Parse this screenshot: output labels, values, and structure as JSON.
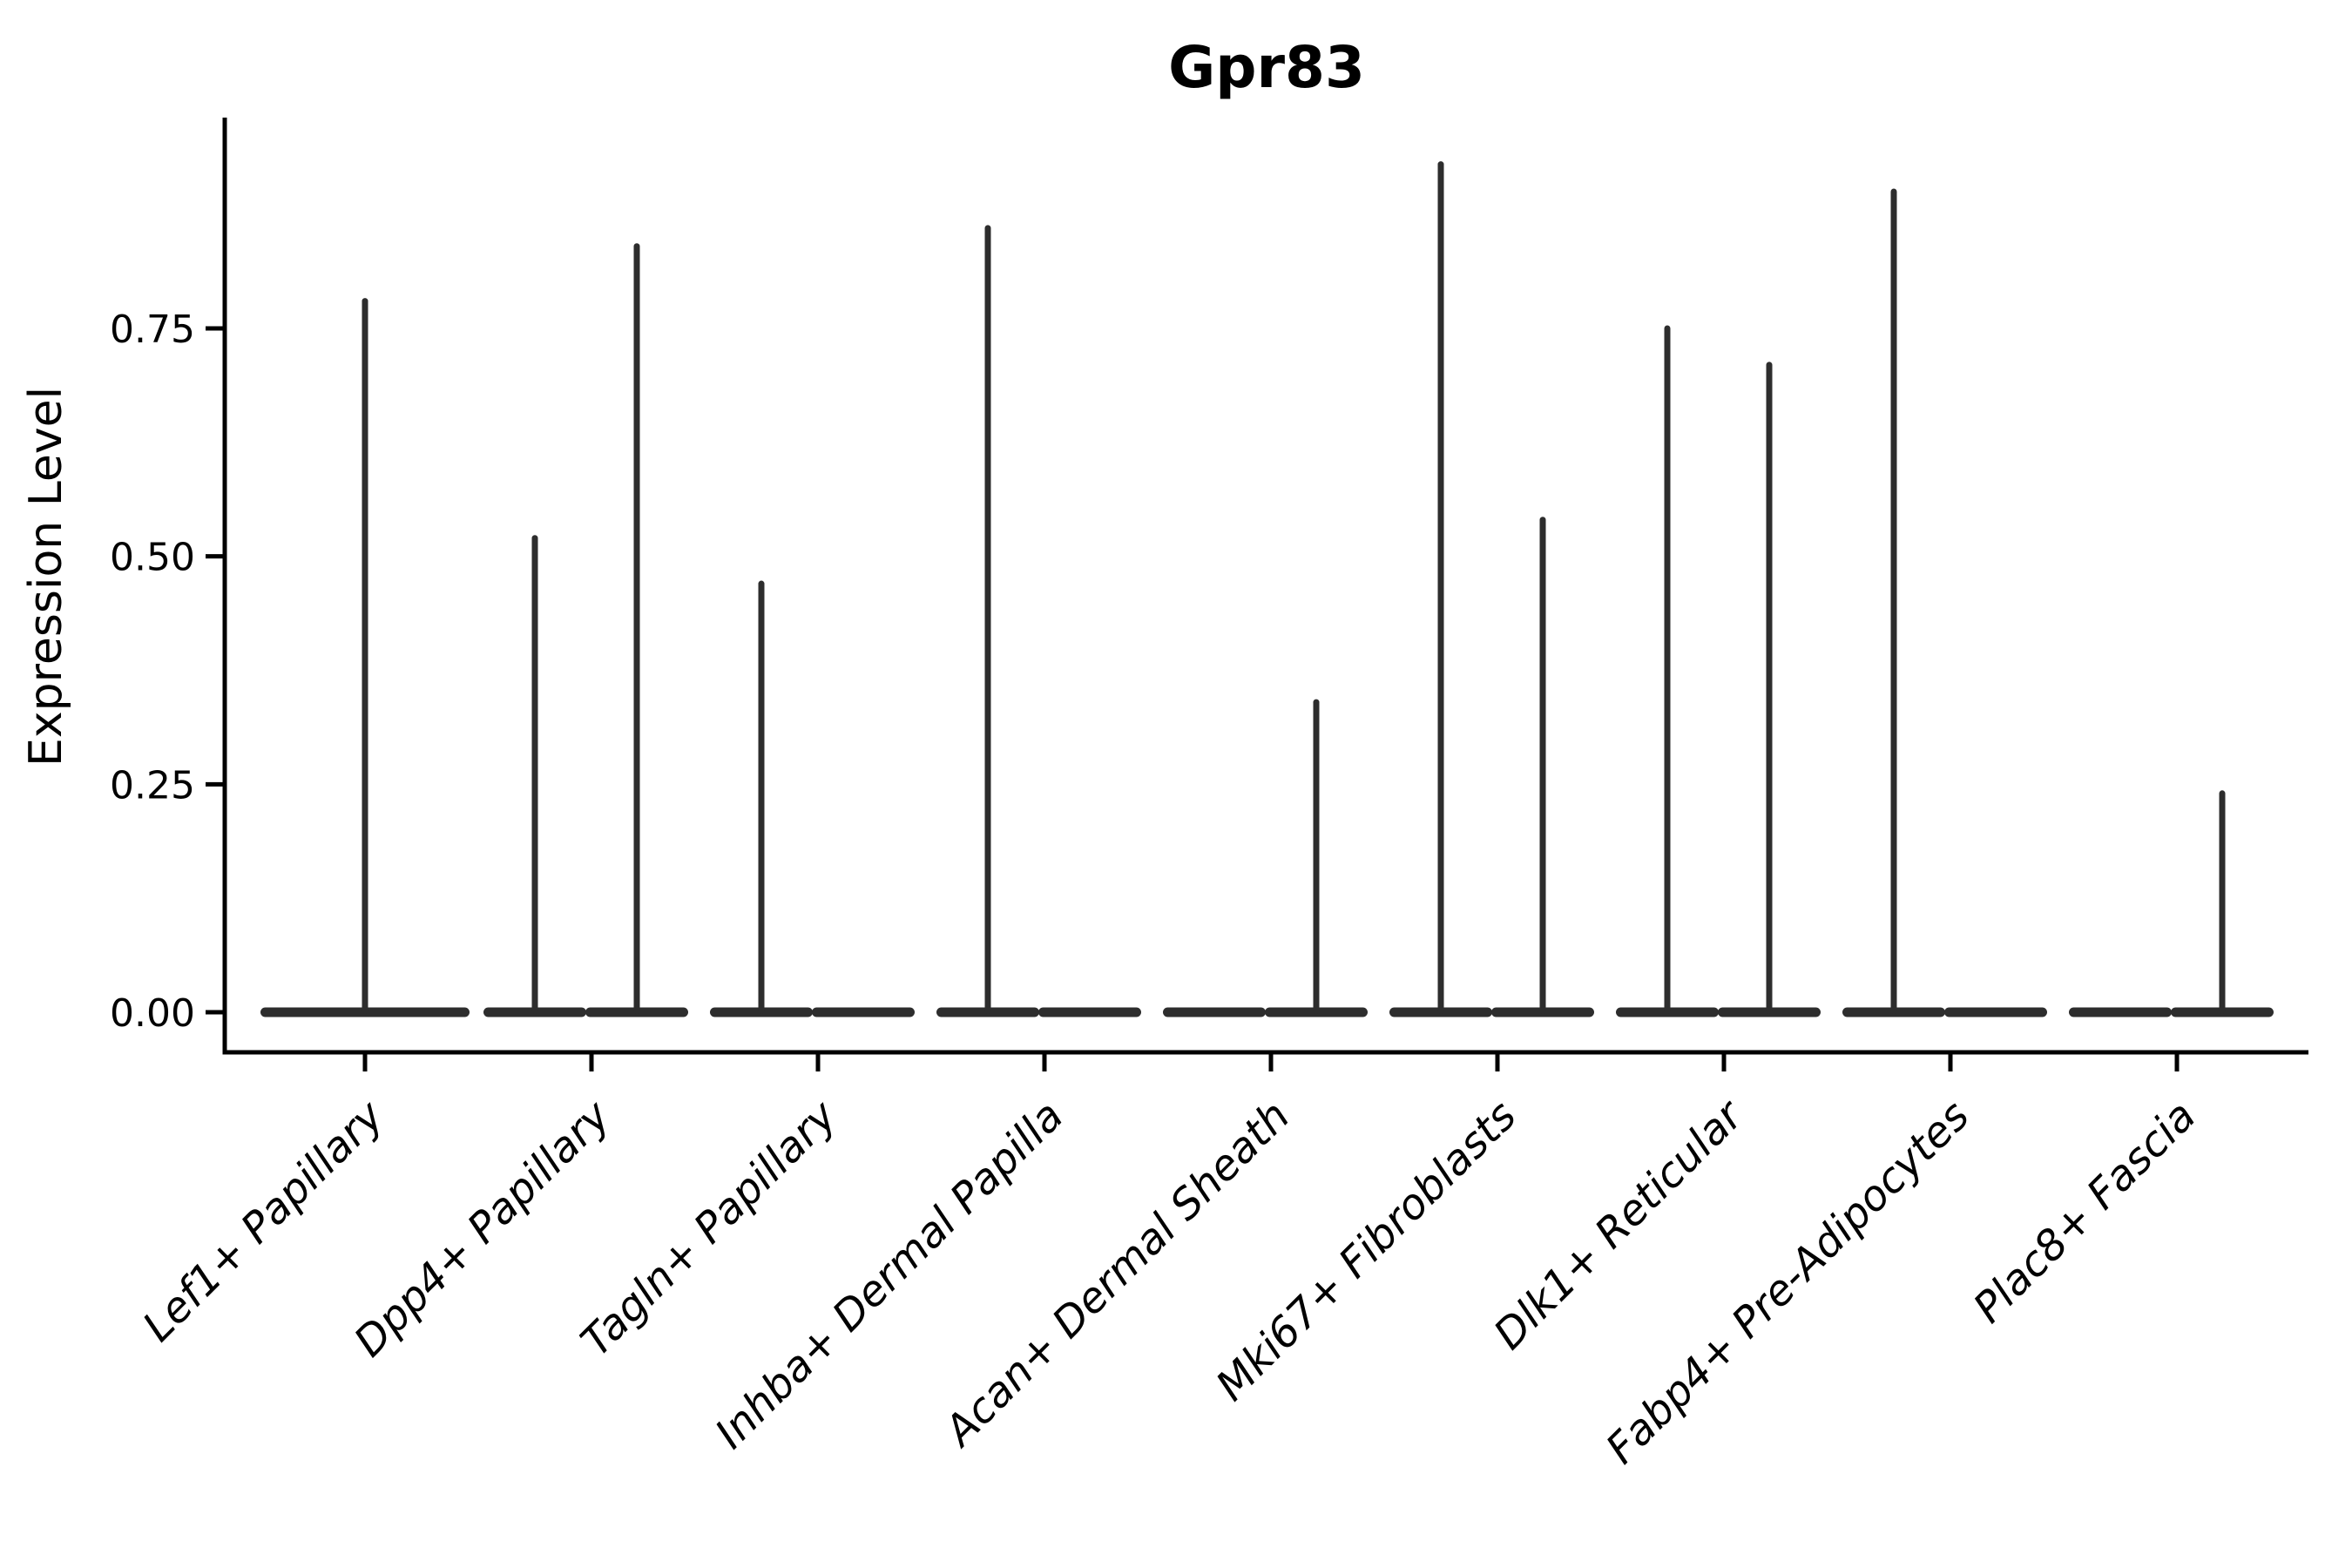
{
  "figure": {
    "background": "#ffffff"
  },
  "chart_data": {
    "type": "violin",
    "title": "Gpr83",
    "xlabel": "",
    "ylabel": "Expression Level",
    "yticks": [
      "0.00",
      "0.25",
      "0.50",
      "0.75"
    ],
    "ytick_values": [
      0.0,
      0.25,
      0.5,
      0.75
    ],
    "ylim": [
      -0.04,
      0.99
    ],
    "grid": false,
    "legend": "none",
    "categories": [
      "Lef1+ Papillary",
      "Dpp4+ Papillary",
      "Tagln+ Papillary",
      "Inhba+ Dermal Papilla",
      "Acan+ Dermal Sheath",
      "Mki67+ Fibroblasts",
      "Dlk1+ Reticular",
      "Fabp4+ Pre-Adipocytes",
      "Plac8+ Fascia"
    ],
    "violin_description": "Each category shows violin(s) collapsed at 0 expression (wide flat base) with a thin spike up to the maximum expression value; categories with two sub-violins have them dodged left/right of the tick.",
    "violins": [
      {
        "category": "Lef1+ Papillary",
        "sub_violins": [
          {
            "position": "center",
            "max_expression": 0.78
          }
        ]
      },
      {
        "category": "Dpp4+ Papillary",
        "sub_violins": [
          {
            "position": "left",
            "max_expression": 0.52
          },
          {
            "position": "right",
            "max_expression": 0.84
          }
        ]
      },
      {
        "category": "Tagln+ Papillary",
        "sub_violins": [
          {
            "position": "left",
            "max_expression": 0.47
          },
          {
            "position": "right",
            "max_expression": 0.0
          }
        ]
      },
      {
        "category": "Inhba+ Dermal Papilla",
        "sub_violins": [
          {
            "position": "left",
            "max_expression": 0.86
          },
          {
            "position": "right",
            "max_expression": 0.0
          }
        ]
      },
      {
        "category": "Acan+ Dermal Sheath",
        "sub_violins": [
          {
            "position": "left",
            "max_expression": 0.0
          },
          {
            "position": "right",
            "max_expression": 0.34
          }
        ]
      },
      {
        "category": "Mki67+ Fibroblasts",
        "sub_violins": [
          {
            "position": "left",
            "max_expression": 0.93
          },
          {
            "position": "right",
            "max_expression": 0.54
          }
        ]
      },
      {
        "category": "Dlk1+ Reticular",
        "sub_violins": [
          {
            "position": "left",
            "max_expression": 0.75
          },
          {
            "position": "right",
            "max_expression": 0.71
          }
        ]
      },
      {
        "category": "Fabp4+ Pre-Adipocytes",
        "sub_violins": [
          {
            "position": "left",
            "max_expression": 0.9
          },
          {
            "position": "right",
            "max_expression": 0.0
          }
        ]
      },
      {
        "category": "Plac8+ Fascia",
        "sub_violins": [
          {
            "position": "left",
            "max_expression": 0.0
          },
          {
            "position": "right",
            "max_expression": 0.24
          }
        ]
      }
    ],
    "colors": {
      "violin": "#2d2d2d",
      "axis": "#000000",
      "text": "#000000",
      "background": "#ffffff"
    }
  }
}
